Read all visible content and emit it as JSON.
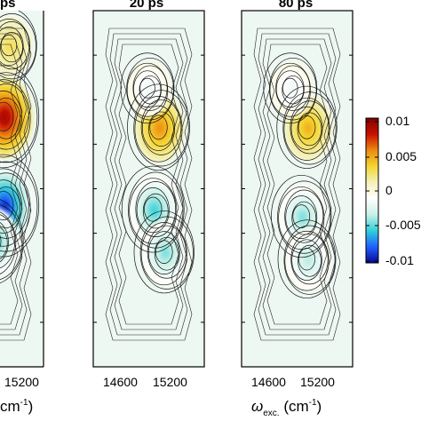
{
  "chart_data": [
    {
      "type": "heatmap",
      "title": "ps",
      "xlabel": "",
      "x_tick_labels": [
        "15200"
      ],
      "x_axis_fragment": "cm",
      "colorscale": [
        "#08088f",
        "#2060ff",
        "#30d0d8",
        "#c9f0e6",
        "#ffffff",
        "#f3f1b8",
        "#f4d630",
        "#ee8a10",
        "#c81000",
        "#800000"
      ],
      "zlim": [
        -0.01,
        0.01
      ],
      "blobs": [
        {
          "x": 15050,
          "y": 0.3,
          "value": 0.01
        },
        {
          "x": 15050,
          "y": 0.55,
          "value": -0.01
        },
        {
          "x": 14950,
          "y": 0.65,
          "value": -0.006
        },
        {
          "x": 15100,
          "y": 0.1,
          "value": 0.003
        }
      ]
    },
    {
      "type": "heatmap",
      "title": "20 ps",
      "xlabel": "",
      "x_tick_labels": [
        "14600",
        "15200"
      ],
      "colorscale": [
        "#08088f",
        "#2060ff",
        "#30d0d8",
        "#c9f0e6",
        "#ffffff",
        "#f3f1b8",
        "#f4d630",
        "#ee8a10",
        "#c81000",
        "#800000"
      ],
      "zlim": [
        -0.01,
        0.01
      ],
      "blobs": [
        {
          "x": 15000,
          "y": 0.33,
          "value": 0.006
        },
        {
          "x": 14950,
          "y": 0.56,
          "value": -0.006
        },
        {
          "x": 15050,
          "y": 0.68,
          "value": -0.005
        },
        {
          "x": 14900,
          "y": 0.22,
          "value": -0.002
        }
      ]
    },
    {
      "type": "heatmap",
      "title": "80 ps",
      "xlabel": "ωexc.(cm-1)",
      "x_tick_labels": [
        "14600",
        "15200"
      ],
      "colorscale": [
        "#08088f",
        "#2060ff",
        "#30d0d8",
        "#c9f0e6",
        "#ffffff",
        "#f3f1b8",
        "#f4d630",
        "#ee8a10",
        "#c81000",
        "#800000"
      ],
      "zlim": [
        -0.01,
        0.01
      ],
      "blobs": [
        {
          "x": 15000,
          "y": 0.33,
          "value": 0.005
        },
        {
          "x": 14950,
          "y": 0.58,
          "value": -0.005
        },
        {
          "x": 15000,
          "y": 0.7,
          "value": -0.004
        },
        {
          "x": 14850,
          "y": 0.22,
          "value": -0.002
        }
      ]
    }
  ],
  "colorbar": {
    "tick_labels": [
      "0.01",
      "0.005",
      "0",
      "-0.005",
      "-0.01"
    ],
    "range": [
      -0.01,
      0.01
    ]
  }
}
